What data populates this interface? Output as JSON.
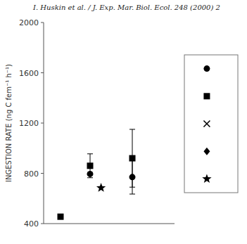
{
  "chart_data": {
    "type": "scatter",
    "title": "I. Huskin et al. / J. Exp. Mar. Biol. Ecol. 248 (2000) 2",
    "y_label": "INGESTION RATE (ng C fem⁻¹ h⁻¹)",
    "xlim": [
      0,
      1.55
    ],
    "ylim": [
      400,
      2000
    ],
    "yticks": [
      400,
      800,
      1200,
      1600,
      2000
    ],
    "tick_labels": "y",
    "legend": "right",
    "series": [
      {
        "marker": "circle",
        "color": "black",
        "x": [
          0.55,
          1.05
        ],
        "values": [
          795,
          770
        ],
        "errors": [
          0,
          135
        ]
      },
      {
        "marker": "square",
        "color": "black",
        "x": [
          0.2,
          0.55,
          1.05
        ],
        "values": [
          455,
          860,
          920
        ],
        "errors": [
          0,
          95,
          230
        ]
      },
      {
        "marker": "cross",
        "color": "black",
        "x": [],
        "values": []
      },
      {
        "marker": "diamond",
        "color": "black",
        "x": [],
        "values": []
      },
      {
        "marker": "star",
        "color": "black",
        "x": [
          0.68
        ],
        "values": [
          685
        ]
      }
    ]
  }
}
